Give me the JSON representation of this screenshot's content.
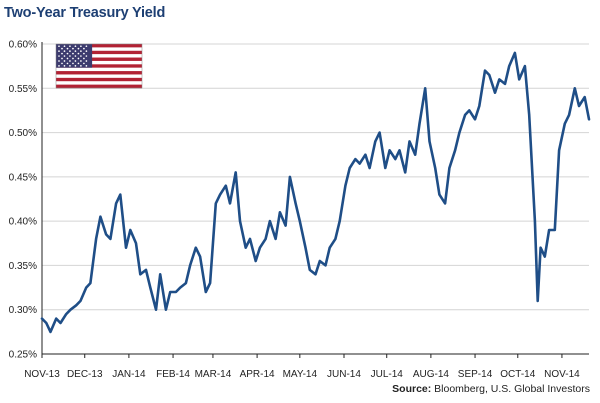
{
  "source_label": "Source:",
  "source_text": "Bloomberg, U.S. Global Investors",
  "chart_data": {
    "type": "line",
    "title": "Two-Year Treasury Yield",
    "xlabel": "",
    "ylabel": "",
    "ylim": [
      0.25,
      0.6
    ],
    "yticks": [
      "0.25%",
      "0.30%",
      "0.35%",
      "0.40%",
      "0.45%",
      "0.50%",
      "0.55%",
      "0.60%"
    ],
    "xticks": [
      "NOV-13",
      "DEC-13",
      "JAN-14",
      "FEB-14",
      "MAR-14",
      "APR-14",
      "MAY-14",
      "JUN-14",
      "JUL-14",
      "AUG-14",
      "SEP-14",
      "OCT-14",
      "NOV-14"
    ],
    "grid": true,
    "legend": "none",
    "flag_icon": "us-flag-icon",
    "line_color": "#1f4e87",
    "x": [
      "2013-11-01",
      "2013-11-04",
      "2013-11-07",
      "2013-11-11",
      "2013-11-14",
      "2013-11-18",
      "2013-11-21",
      "2013-11-25",
      "2013-11-28",
      "2013-12-02",
      "2013-12-05",
      "2013-12-09",
      "2013-12-12",
      "2013-12-16",
      "2013-12-19",
      "2013-12-23",
      "2013-12-26",
      "2013-12-30",
      "2014-01-02",
      "2014-01-06",
      "2014-01-09",
      "2014-01-13",
      "2014-01-16",
      "2014-01-20",
      "2014-01-23",
      "2014-01-27",
      "2014-01-30",
      "2014-02-03",
      "2014-02-06",
      "2014-02-10",
      "2014-02-13",
      "2014-02-17",
      "2014-02-20",
      "2014-02-24",
      "2014-02-27",
      "2014-03-03",
      "2014-03-06",
      "2014-03-10",
      "2014-03-13",
      "2014-03-17",
      "2014-03-20",
      "2014-03-24",
      "2014-03-27",
      "2014-03-31",
      "2014-04-03",
      "2014-04-07",
      "2014-04-10",
      "2014-04-14",
      "2014-04-17",
      "2014-04-21",
      "2014-04-24",
      "2014-04-28",
      "2014-05-01",
      "2014-05-05",
      "2014-05-08",
      "2014-05-12",
      "2014-05-15",
      "2014-05-19",
      "2014-05-22",
      "2014-05-26",
      "2014-05-29",
      "2014-06-02",
      "2014-06-05",
      "2014-06-09",
      "2014-06-12",
      "2014-06-16",
      "2014-06-19",
      "2014-06-23",
      "2014-06-26",
      "2014-06-30",
      "2014-07-03",
      "2014-07-07",
      "2014-07-10",
      "2014-07-14",
      "2014-07-17",
      "2014-07-21",
      "2014-07-24",
      "2014-07-28",
      "2014-07-31",
      "2014-08-04",
      "2014-08-07",
      "2014-08-11",
      "2014-08-14",
      "2014-08-18",
      "2014-08-21",
      "2014-08-25",
      "2014-08-28",
      "2014-09-01",
      "2014-09-04",
      "2014-09-08",
      "2014-09-11",
      "2014-09-15",
      "2014-09-18",
      "2014-09-22",
      "2014-09-25",
      "2014-09-29",
      "2014-10-02",
      "2014-10-06",
      "2014-10-09",
      "2014-10-13",
      "2014-10-15",
      "2014-10-17",
      "2014-10-20",
      "2014-10-23",
      "2014-10-27",
      "2014-10-30",
      "2014-11-03",
      "2014-11-06",
      "2014-11-10",
      "2014-11-13",
      "2014-11-17",
      "2014-11-20"
    ],
    "series": [
      {
        "values": [
          0.29,
          0.285,
          0.275,
          0.29,
          0.285,
          0.295,
          0.3,
          0.305,
          0.31,
          0.325,
          0.33,
          0.38,
          0.405,
          0.385,
          0.38,
          0.42,
          0.43,
          0.37,
          0.39,
          0.375,
          0.34,
          0.345,
          0.325,
          0.3,
          0.34,
          0.3,
          0.32,
          0.32,
          0.325,
          0.33,
          0.35,
          0.37,
          0.36,
          0.32,
          0.33,
          0.42,
          0.43,
          0.44,
          0.42,
          0.455,
          0.4,
          0.37,
          0.38,
          0.355,
          0.37,
          0.38,
          0.4,
          0.38,
          0.41,
          0.395,
          0.45,
          0.42,
          0.4,
          0.37,
          0.345,
          0.34,
          0.355,
          0.35,
          0.37,
          0.38,
          0.4,
          0.44,
          0.46,
          0.47,
          0.465,
          0.475,
          0.46,
          0.49,
          0.5,
          0.46,
          0.48,
          0.47,
          0.48,
          0.455,
          0.49,
          0.475,
          0.51,
          0.55,
          0.49,
          0.46,
          0.43,
          0.42,
          0.46,
          0.48,
          0.5,
          0.52,
          0.525,
          0.515,
          0.53,
          0.57,
          0.565,
          0.545,
          0.56,
          0.555,
          0.575,
          0.59,
          0.56,
          0.575,
          0.52,
          0.4,
          0.31,
          0.37,
          0.36,
          0.39,
          0.39,
          0.48,
          0.51,
          0.52,
          0.55,
          0.53,
          0.54,
          0.515
        ]
      }
    ]
  }
}
